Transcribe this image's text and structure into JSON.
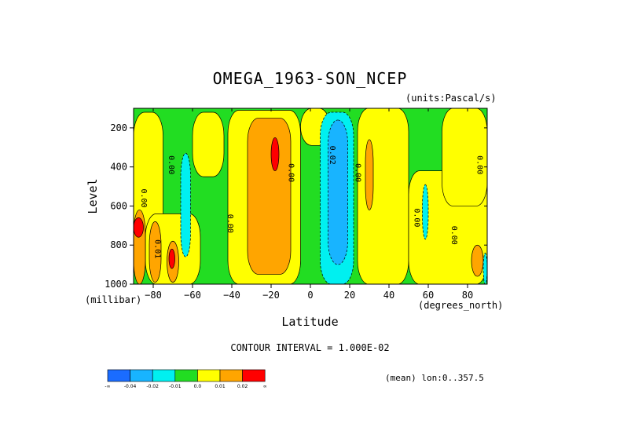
{
  "chart_data": {
    "type": "contour",
    "title": "OMEGA_1963-SON_NCEP",
    "units": "(units:Pascal/s)",
    "xlabel": "Latitude",
    "x_unit_label": "(degrees_north)",
    "ylabel": "Level",
    "y_unit_label": "(millibar)",
    "xlim": [
      -90,
      90
    ],
    "ylim": [
      1000,
      100
    ],
    "x_ticks": [
      -80,
      -60,
      -40,
      -20,
      0,
      20,
      40,
      60,
      80
    ],
    "y_ticks": [
      200,
      400,
      600,
      800,
      1000
    ],
    "contour_interval_label": "CONTOUR INTERVAL = 1.000E-02",
    "mean_label": "(mean) lon:0..357.5",
    "colorbar": {
      "labels": [
        "-∞",
        "-0.04",
        "-0.02",
        "-0.01",
        "0.0",
        "0.01",
        "0.02",
        "∞"
      ],
      "colors": [
        "#1a6cff",
        "#18b4ff",
        "#00f0f0",
        "#22dd22",
        "#ffff00",
        "#ffa500",
        "#ff0000"
      ]
    },
    "background_color": "#22dd22",
    "regions": [
      {
        "level": "0.0",
        "color": "#ffff00",
        "lat_range": [
          -90,
          -75
        ],
        "p_range": [
          120,
          780
        ]
      },
      {
        "level": "0.0",
        "color": "#ffff00",
        "lat_range": [
          -84,
          -56
        ],
        "p_range": [
          640,
          1000
        ]
      },
      {
        "level": "0.01",
        "color": "#ffa500",
        "lat_range": [
          -90,
          -84
        ],
        "p_range": [
          620,
          1000
        ]
      },
      {
        "level": "0.02",
        "color": "#ff0000",
        "lat_range": [
          -90,
          -85
        ],
        "p_range": [
          660,
          760
        ]
      },
      {
        "level": "0.01",
        "color": "#ffa500",
        "lat_range": [
          -82,
          -76
        ],
        "p_range": [
          680,
          990
        ]
      },
      {
        "level": "0.01",
        "color": "#ffa500",
        "lat_range": [
          -73,
          -67
        ],
        "p_range": [
          780,
          990
        ]
      },
      {
        "level": "0.02",
        "color": "#ff0000",
        "lat_range": [
          -72,
          -69
        ],
        "p_range": [
          820,
          920
        ]
      },
      {
        "level": "-0.01",
        "color": "#00f0f0",
        "lat_range": [
          -66,
          -61
        ],
        "p_range": [
          330,
          860
        ]
      },
      {
        "level": "0.0",
        "color": "#ffff00",
        "lat_range": [
          -60,
          -44
        ],
        "p_range": [
          120,
          450
        ]
      },
      {
        "level": "0.0",
        "color": "#ffff00",
        "lat_range": [
          -42,
          -5
        ],
        "p_range": [
          110,
          1000
        ]
      },
      {
        "level": "0.01",
        "color": "#ffa500",
        "lat_range": [
          -32,
          -10
        ],
        "p_range": [
          150,
          950
        ]
      },
      {
        "level": "0.02",
        "color": "#ff0000",
        "lat_range": [
          -20,
          -16
        ],
        "p_range": [
          250,
          420
        ]
      },
      {
        "level": "0.0",
        "color": "#ffff00",
        "lat_range": [
          -5,
          10
        ],
        "p_range": [
          100,
          290
        ]
      },
      {
        "level": "-0.01",
        "color": "#00f0f0",
        "lat_range": [
          5,
          22
        ],
        "p_range": [
          120,
          1000
        ]
      },
      {
        "level": "-0.02",
        "color": "#18b4ff",
        "lat_range": [
          9,
          19
        ],
        "p_range": [
          160,
          900
        ]
      },
      {
        "level": "0.0",
        "color": "#ffff00",
        "lat_range": [
          24,
          50
        ],
        "p_range": [
          100,
          1000
        ]
      },
      {
        "level": "0.01",
        "color": "#ffa500",
        "lat_range": [
          28,
          32
        ],
        "p_range": [
          260,
          620
        ]
      },
      {
        "level": "0.0",
        "color": "#ffff00",
        "lat_range": [
          50,
          90
        ],
        "p_range": [
          420,
          1000
        ]
      },
      {
        "level": "0.0",
        "color": "#ffff00",
        "lat_range": [
          67,
          90
        ],
        "p_range": [
          100,
          600
        ]
      },
      {
        "level": "-0.01",
        "color": "#00f0f0",
        "lat_range": [
          57,
          60
        ],
        "p_range": [
          490,
          770
        ]
      },
      {
        "level": "0.01",
        "color": "#ffa500",
        "lat_range": [
          82,
          88
        ],
        "p_range": [
          800,
          960
        ]
      },
      {
        "level": "-0.01",
        "color": "#00f0f0",
        "lat_range": [
          88,
          90
        ],
        "p_range": [
          840,
          1000
        ]
      }
    ],
    "contour_labels": [
      {
        "text": "0.00",
        "lat": -86,
        "p": 560
      },
      {
        "text": "0.00",
        "lat": -72,
        "p": 390
      },
      {
        "text": "0.01",
        "lat": -79,
        "p": 820
      },
      {
        "text": "0.00",
        "lat": -42,
        "p": 690
      },
      {
        "text": "0.00",
        "lat": -11,
        "p": 430
      },
      {
        "text": "0.02",
        "lat": 10,
        "p": 340
      },
      {
        "text": "0.00",
        "lat": 23,
        "p": 430
      },
      {
        "text": "0.00",
        "lat": 53,
        "p": 660
      },
      {
        "text": "0.00",
        "lat": 72,
        "p": 750
      },
      {
        "text": "0.00",
        "lat": 85,
        "p": 390
      }
    ]
  }
}
